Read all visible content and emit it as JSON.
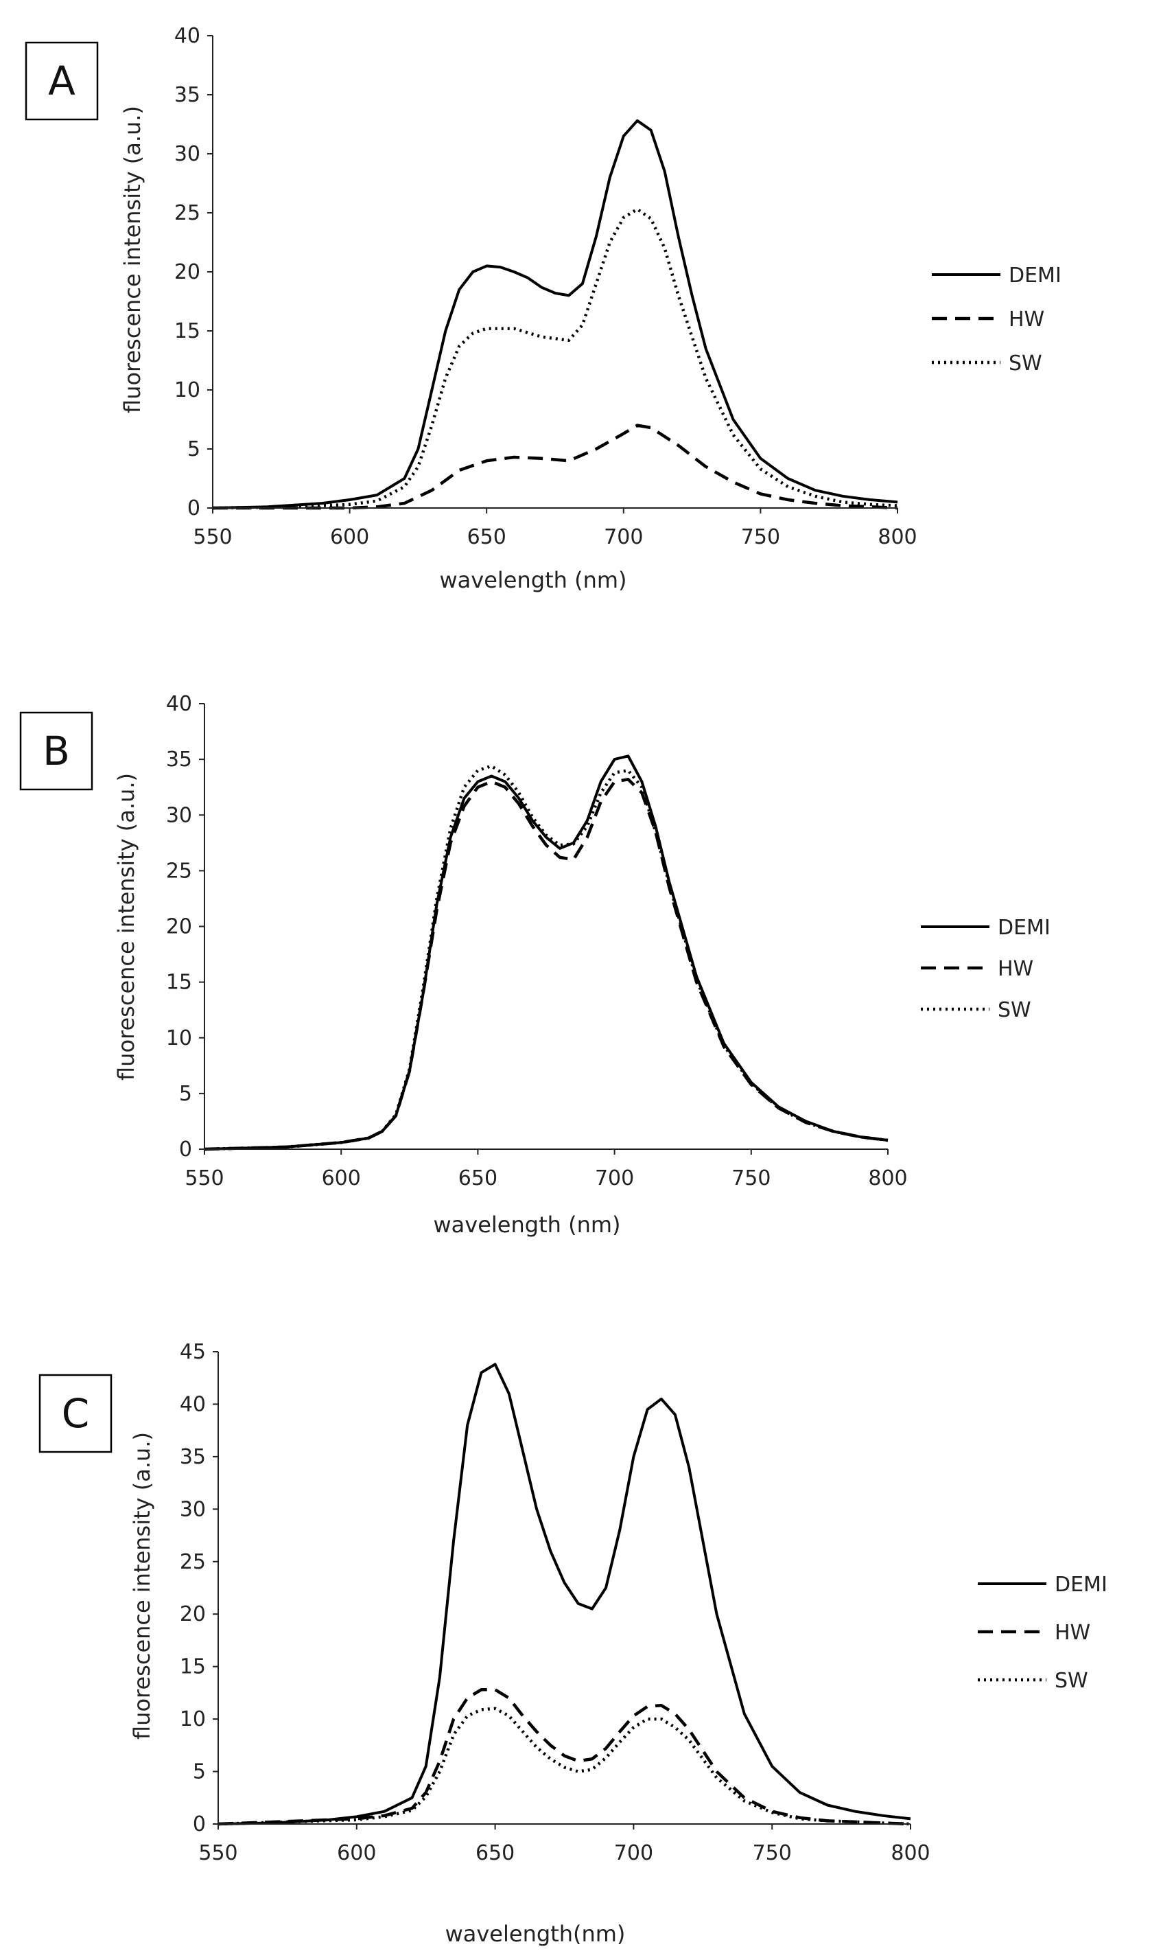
{
  "chart_data": [
    {
      "type": "line",
      "panel_label": "A",
      "xlabel": "wavelength (nm)",
      "ylabel": "fluorescence intensity (a.u.)",
      "xlim": [
        550,
        800
      ],
      "ylim": [
        0,
        40
      ],
      "x_ticks": [
        550,
        600,
        650,
        700,
        750,
        800
      ],
      "y_ticks": [
        0,
        5,
        10,
        15,
        20,
        25,
        30,
        35,
        40
      ],
      "grid": false,
      "legend_position": "right",
      "series": [
        {
          "name": "DEMI",
          "style": "solid",
          "x": [
            550,
            570,
            590,
            600,
            610,
            620,
            625,
            630,
            635,
            640,
            645,
            650,
            655,
            660,
            665,
            670,
            675,
            680,
            685,
            690,
            695,
            700,
            705,
            710,
            715,
            720,
            725,
            730,
            740,
            750,
            760,
            770,
            780,
            790,
            800
          ],
          "y": [
            0,
            0.1,
            0.4,
            0.7,
            1.1,
            2.5,
            5,
            10,
            15,
            18.5,
            20,
            20.5,
            20.4,
            20,
            19.5,
            18.7,
            18.2,
            18,
            19,
            23,
            28,
            31.5,
            32.8,
            32,
            28.5,
            23,
            18,
            13.5,
            7.5,
            4.2,
            2.5,
            1.5,
            1,
            0.7,
            0.5
          ]
        },
        {
          "name": "HW",
          "style": "dashed",
          "x": [
            550,
            600,
            610,
            620,
            630,
            640,
            650,
            660,
            670,
            680,
            690,
            700,
            705,
            710,
            720,
            730,
            740,
            750,
            760,
            770,
            780,
            790,
            800
          ],
          "y": [
            0,
            0,
            0.1,
            0.4,
            1.5,
            3.2,
            4,
            4.3,
            4.2,
            4,
            5,
            6.3,
            7,
            6.8,
            5.3,
            3.5,
            2.2,
            1.2,
            0.7,
            0.4,
            0.2,
            0.1,
            0
          ]
        },
        {
          "name": "SW",
          "style": "dotted",
          "x": [
            550,
            580,
            600,
            610,
            620,
            625,
            630,
            635,
            640,
            645,
            650,
            660,
            670,
            680,
            685,
            690,
            695,
            700,
            705,
            710,
            715,
            720,
            730,
            740,
            750,
            760,
            770,
            780,
            790,
            800
          ],
          "y": [
            0,
            0.1,
            0.3,
            0.6,
            1.8,
            3.5,
            7,
            11,
            13.7,
            14.8,
            15.2,
            15.2,
            14.5,
            14.2,
            15.5,
            19,
            22.5,
            24.6,
            25.3,
            24.5,
            22,
            18,
            11,
            6.2,
            3.3,
            1.8,
            1,
            0.5,
            0.3,
            0.2
          ]
        }
      ]
    },
    {
      "type": "line",
      "panel_label": "B",
      "xlabel": "wavelength (nm)",
      "ylabel": "fluorescence intensity (a.u.)",
      "xlim": [
        550,
        800
      ],
      "ylim": [
        0,
        40
      ],
      "x_ticks": [
        550,
        600,
        650,
        700,
        750,
        800
      ],
      "y_ticks": [
        0,
        5,
        10,
        15,
        20,
        25,
        30,
        35,
        40
      ],
      "grid": false,
      "legend_position": "right",
      "series": [
        {
          "name": "DEMI",
          "style": "solid",
          "x": [
            550,
            580,
            600,
            610,
            615,
            620,
            625,
            630,
            635,
            640,
            645,
            650,
            655,
            660,
            665,
            670,
            675,
            680,
            685,
            690,
            695,
            700,
            705,
            710,
            715,
            720,
            730,
            740,
            750,
            760,
            770,
            780,
            790,
            800
          ],
          "y": [
            0,
            0.2,
            0.6,
            1,
            1.6,
            3,
            7,
            14,
            22,
            28,
            31.5,
            33,
            33.5,
            33,
            31.5,
            29.5,
            28,
            27,
            27.5,
            29.5,
            33,
            35,
            35.3,
            33,
            29,
            24,
            15.5,
            9.5,
            6,
            3.8,
            2.5,
            1.6,
            1.1,
            0.8
          ]
        },
        {
          "name": "HW",
          "style": "dashed",
          "x": [
            550,
            580,
            600,
            610,
            615,
            620,
            625,
            630,
            635,
            640,
            645,
            650,
            655,
            660,
            665,
            670,
            675,
            680,
            685,
            690,
            695,
            700,
            705,
            710,
            715,
            720,
            730,
            740,
            750,
            760,
            770,
            780,
            790,
            800
          ],
          "y": [
            0,
            0.2,
            0.6,
            1,
            1.6,
            3,
            7,
            14,
            21.5,
            27.5,
            30.8,
            32.5,
            33,
            32.5,
            31,
            29,
            27.3,
            26.2,
            26,
            28,
            31.2,
            33,
            33.2,
            32,
            28.5,
            23.5,
            15,
            9.2,
            5.8,
            3.7,
            2.4,
            1.6,
            1.1,
            0.8
          ]
        },
        {
          "name": "SW",
          "style": "dotted",
          "x": [
            550,
            580,
            600,
            610,
            615,
            620,
            625,
            630,
            635,
            640,
            645,
            650,
            655,
            660,
            665,
            670,
            675,
            680,
            685,
            690,
            695,
            700,
            705,
            710,
            715,
            720,
            730,
            740,
            750,
            760,
            770,
            780,
            790,
            800
          ],
          "y": [
            0,
            0.2,
            0.6,
            1,
            1.6,
            3.1,
            7.2,
            14.5,
            22.5,
            28.8,
            32.5,
            34,
            34.4,
            33.6,
            32,
            29.8,
            28.2,
            27.3,
            27.4,
            29,
            32,
            33.8,
            34,
            32.5,
            28.5,
            23.8,
            15.2,
            9.3,
            5.9,
            3.7,
            2.4,
            1.6,
            1.1,
            0.8
          ]
        }
      ]
    },
    {
      "type": "line",
      "panel_label": "C",
      "xlabel": "wavelength(nm)",
      "ylabel": "fluorescence intensity (a.u.)",
      "xlim": [
        550,
        800
      ],
      "ylim": [
        0,
        45
      ],
      "x_ticks": [
        550,
        600,
        650,
        700,
        750,
        800
      ],
      "y_ticks": [
        0,
        5,
        10,
        15,
        20,
        25,
        30,
        35,
        40,
        45
      ],
      "grid": false,
      "legend_position": "right",
      "series": [
        {
          "name": "DEMI",
          "style": "solid",
          "x": [
            550,
            570,
            590,
            600,
            610,
            620,
            625,
            630,
            635,
            640,
            645,
            650,
            655,
            660,
            665,
            670,
            675,
            680,
            685,
            690,
            695,
            700,
            705,
            710,
            715,
            720,
            725,
            730,
            740,
            750,
            760,
            770,
            780,
            790,
            800
          ],
          "y": [
            0,
            0.1,
            0.4,
            0.7,
            1.2,
            2.5,
            5.5,
            14,
            27,
            38,
            43,
            43.8,
            41,
            35.5,
            30,
            26,
            23,
            21,
            20.5,
            22.5,
            28,
            35,
            39.5,
            40.5,
            39,
            34,
            27,
            20,
            10.5,
            5.5,
            3,
            1.8,
            1.2,
            0.8,
            0.5
          ]
        },
        {
          "name": "HW",
          "style": "dashed",
          "x": [
            550,
            600,
            610,
            620,
            625,
            630,
            635,
            640,
            645,
            650,
            655,
            660,
            665,
            670,
            675,
            680,
            685,
            690,
            695,
            700,
            705,
            710,
            715,
            720,
            725,
            730,
            740,
            750,
            760,
            770,
            780,
            790,
            800
          ],
          "y": [
            0,
            0.5,
            0.8,
            1.5,
            3,
            6,
            10,
            12,
            12.8,
            12.8,
            12,
            10.3,
            8.8,
            7.5,
            6.5,
            6,
            6.2,
            7.2,
            8.8,
            10.3,
            11.2,
            11.3,
            10.5,
            9,
            7,
            5,
            2.5,
            1.2,
            0.6,
            0.3,
            0.2,
            0.1,
            0
          ]
        },
        {
          "name": "SW",
          "style": "dotted",
          "x": [
            550,
            600,
            610,
            620,
            625,
            630,
            635,
            640,
            645,
            650,
            655,
            660,
            665,
            670,
            675,
            680,
            685,
            690,
            695,
            700,
            705,
            710,
            715,
            720,
            725,
            730,
            740,
            750,
            760,
            770,
            780,
            790,
            800
          ],
          "y": [
            0,
            0.4,
            0.7,
            1.3,
            2.6,
            5,
            8.5,
            10.3,
            10.9,
            11,
            10.3,
            8.8,
            7.3,
            6.2,
            5.4,
            5,
            5.2,
            6.3,
            7.8,
            9.2,
            10,
            10,
            9.2,
            8,
            6.2,
            4.4,
            2.2,
            1.1,
            0.5,
            0.3,
            0.2,
            0.1,
            0
          ]
        }
      ]
    }
  ]
}
